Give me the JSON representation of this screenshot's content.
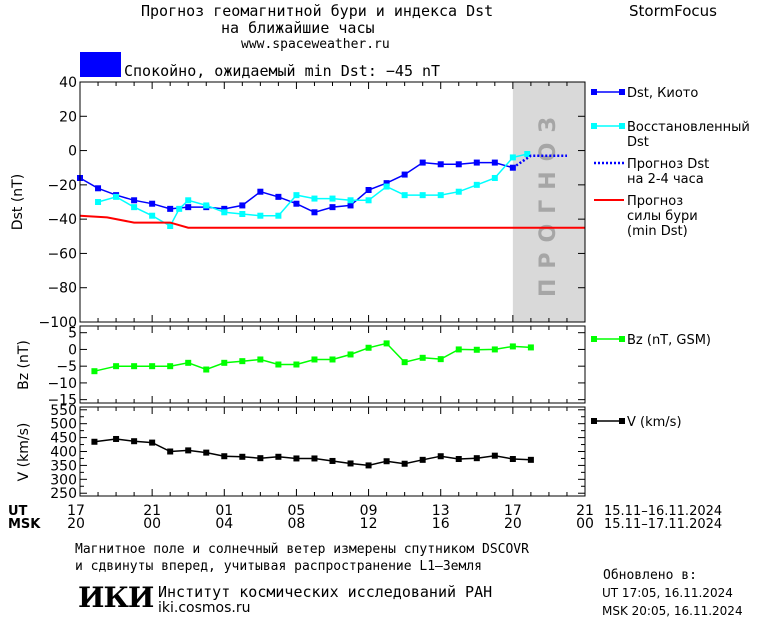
{
  "header": {
    "title_line1": "Прогноз геомагнитной бури и индекса Dst",
    "title_line2": "на ближайшие часы",
    "website": "www.spaceweather.ru",
    "brand": "StormFocus",
    "status_text": "Спокойно, ожидаемый min Dst: −45 nT",
    "status_color": "#0000ff"
  },
  "colors": {
    "dst_kyoto": "#0000ff",
    "dst_restored": "#00ffff",
    "dst_forecast": "#0000ff",
    "storm_forecast": "#ff0000",
    "bz": "#00ff00",
    "v": "#000000",
    "forecast_band": "#d9d9d9"
  },
  "forecast_band_label": "ПРОГНОЗ",
  "chart_data": [
    {
      "type": "line",
      "name": "dst-panel",
      "ylabel": "Dst (nT)",
      "ylim": [
        -100,
        40
      ],
      "yticks": [
        40,
        20,
        0,
        -20,
        -40,
        -60,
        -80,
        -100
      ],
      "xlim": [
        17,
        45
      ],
      "forecast_band": [
        41.0,
        45
      ],
      "legend": [
        {
          "label_lines": [
            "Dst, Киото"
          ],
          "color": "#0000ff",
          "style": "line-square"
        },
        {
          "label_lines": [
            "Восстановленный",
            "Dst"
          ],
          "color": "#00ffff",
          "style": "line-square"
        },
        {
          "label_lines": [
            "Прогноз Dst",
            "на 2-4 часа"
          ],
          "color": "#0000ff",
          "style": "dotted"
        },
        {
          "label_lines": [
            "Прогноз",
            "силы бури",
            "(min Dst)"
          ],
          "color": "#ff0000",
          "style": "line"
        }
      ],
      "series": [
        {
          "name": "Dst, Киото",
          "color": "#0000ff",
          "style": "line-square",
          "x": [
            17,
            18,
            19,
            20,
            21,
            22,
            23,
            24,
            25,
            26,
            27,
            28,
            29,
            30,
            31,
            32,
            33,
            34,
            35,
            36,
            37,
            38,
            39,
            40,
            41
          ],
          "y": [
            -16,
            -22,
            -26,
            -29,
            -31,
            -34,
            -33,
            -33,
            -34,
            -32,
            -24,
            -27,
            -31,
            -36,
            -33,
            -32,
            -23,
            -19,
            -14,
            -7,
            -8,
            -8,
            -7,
            -7,
            -10
          ]
        },
        {
          "name": "Восстановленный Dst",
          "color": "#00ffff",
          "style": "line-square",
          "x": [
            18,
            19,
            20,
            21,
            22,
            22.5,
            23,
            24,
            25,
            26,
            27,
            28,
            29,
            30,
            31,
            32,
            33,
            34,
            35,
            36,
            37,
            38,
            39,
            40,
            41,
            41.8
          ],
          "y": [
            -30,
            -27,
            -33,
            -38,
            -44,
            -34,
            -29,
            -32,
            -36,
            -37,
            -38,
            -38,
            -26,
            -28,
            -28,
            -29,
            -29,
            -21,
            -26,
            -26,
            -26,
            -24,
            -20,
            -16,
            -4,
            -2
          ]
        },
        {
          "name": "Прогноз Dst на 2-4 часа",
          "color": "#0000ff",
          "style": "dotted",
          "x": [
            41,
            42,
            43,
            44
          ],
          "y": [
            -10,
            -3,
            -3,
            -3
          ]
        },
        {
          "name": "Прогноз силы бури (min Dst)",
          "color": "#ff0000",
          "style": "line",
          "x": [
            17,
            18.5,
            20,
            21,
            22,
            23,
            24,
            45
          ],
          "y": [
            -38,
            -39,
            -42,
            -42,
            -42,
            -45,
            -45,
            -45
          ]
        }
      ]
    },
    {
      "type": "line",
      "name": "bz-panel",
      "ylabel": "Bz (nT)",
      "ylim": [
        -16,
        7
      ],
      "yticks": [
        5,
        0,
        -5,
        -10,
        -15
      ],
      "xlim": [
        17,
        45
      ],
      "legend": [
        {
          "label_lines": [
            "Bz (nT, GSM)"
          ],
          "color": "#00ff00",
          "style": "line-square"
        }
      ],
      "series": [
        {
          "name": "Bz (nT, GSM)",
          "color": "#00ff00",
          "style": "line-square",
          "x": [
            17.8,
            19,
            20,
            21,
            22,
            23,
            24,
            25,
            26,
            27,
            28,
            29,
            30,
            31,
            32,
            33,
            34,
            35,
            36,
            37,
            38,
            39,
            40,
            41,
            42
          ],
          "y": [
            -6.5,
            -5,
            -5,
            -5,
            -5,
            -4,
            -6,
            -4,
            -3.5,
            -3,
            -4.5,
            -4.5,
            -3,
            -3,
            -1.5,
            0.5,
            1.8,
            -3.8,
            -2.5,
            -2.9,
            0,
            -0.1,
            0,
            0.9,
            0.6
          ]
        }
      ]
    },
    {
      "type": "line",
      "name": "v-panel",
      "ylabel": "V (km/s)",
      "ylim": [
        240,
        560
      ],
      "yticks": [
        550,
        500,
        450,
        400,
        350,
        300,
        250
      ],
      "yticks_minor": [
        525,
        475,
        425,
        375,
        325,
        275
      ],
      "xlim": [
        17,
        45
      ],
      "legend": [
        {
          "label_lines": [
            "V (km/s)"
          ],
          "color": "#000000",
          "style": "line-square"
        }
      ],
      "series": [
        {
          "name": "V (km/s)",
          "color": "#000000",
          "style": "line-square",
          "x": [
            17.8,
            19,
            20,
            21,
            22,
            23,
            24,
            25,
            26,
            27,
            28,
            29,
            30,
            31,
            32,
            33,
            34,
            35,
            36,
            37,
            38,
            39,
            40,
            41,
            42
          ],
          "y": [
            435,
            445,
            437,
            432,
            400,
            404,
            396,
            383,
            381,
            376,
            381,
            375,
            375,
            366,
            357,
            350,
            365,
            356,
            370,
            383,
            373,
            376,
            385,
            373,
            370
          ]
        }
      ]
    }
  ],
  "x_axis": {
    "ut_label": "UT",
    "msk_label": "MSK",
    "ticks": [
      {
        "x": 17,
        "ut": "17",
        "msk": "20"
      },
      {
        "x": 21,
        "ut": "21",
        "msk": "00"
      },
      {
        "x": 25,
        "ut": "01",
        "msk": "04"
      },
      {
        "x": 29,
        "ut": "05",
        "msk": "08"
      },
      {
        "x": 33,
        "ut": "09",
        "msk": "12"
      },
      {
        "x": 37,
        "ut": "13",
        "msk": "16"
      },
      {
        "x": 41,
        "ut": "17",
        "msk": "20"
      },
      {
        "x": 45,
        "ut": "21",
        "msk": "00"
      }
    ],
    "ut_range": "15.11–16.11.2024",
    "msk_range": "15.11–17.11.2024"
  },
  "footer": {
    "note_line1": "Магнитное поле и солнечный ветер измерены спутником DSCOVR",
    "note_line2": "и сдвинуты вперед, учитывая распространение L1–Земля",
    "logo_text": "ИКИ",
    "institute_name": "Институт космических исследований РАН",
    "institute_url": "iki.cosmos.ru",
    "updated_label": "Обновлено в:",
    "updated_ut": "UT  17:05, 16.11.2024",
    "updated_msk": "MSK 20:05, 16.11.2024"
  }
}
